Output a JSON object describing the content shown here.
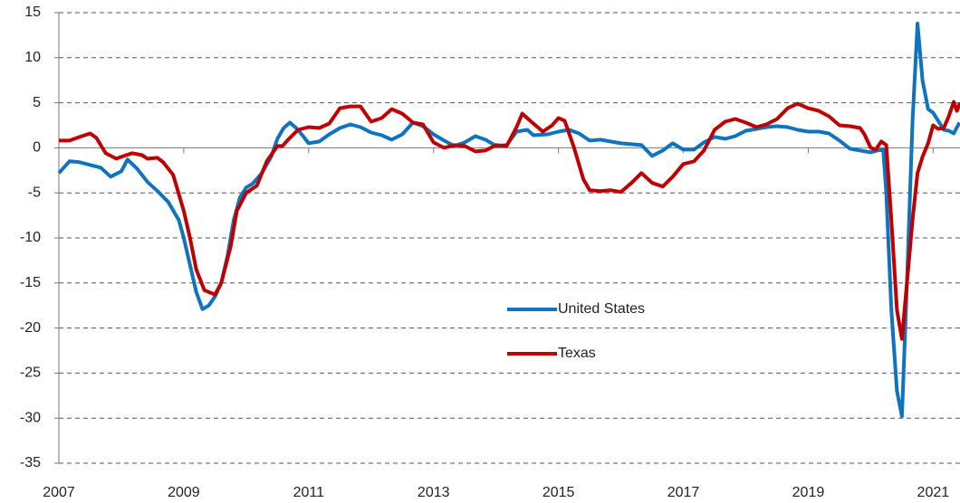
{
  "chart_data": {
    "type": "line",
    "xlim": [
      2007,
      2021.43
    ],
    "xticks": [
      2007,
      2009,
      2011,
      2013,
      2015,
      2017,
      2019,
      2021
    ],
    "ylim": [
      -35,
      15
    ],
    "yticks": [
      -35,
      -30,
      -25,
      -20,
      -15,
      -10,
      -5,
      0,
      5,
      10,
      15
    ],
    "grid": true,
    "legend": "center",
    "series": [
      {
        "name": "United States",
        "color": "#0f73c0",
        "x": [
          2007.0,
          2007.17,
          2007.33,
          2007.5,
          2007.67,
          2007.83,
          2008.0,
          2008.1,
          2008.25,
          2008.42,
          2008.58,
          2008.75,
          2008.92,
          2009.0,
          2009.1,
          2009.2,
          2009.3,
          2009.4,
          2009.5,
          2009.6,
          2009.7,
          2009.8,
          2009.9,
          2010.0,
          2010.1,
          2010.25,
          2010.4,
          2010.5,
          2010.6,
          2010.7,
          2010.8,
          2010.9,
          2011.0,
          2011.17,
          2011.33,
          2011.5,
          2011.67,
          2011.83,
          2012.0,
          2012.17,
          2012.33,
          2012.5,
          2012.67,
          2012.83,
          2013.0,
          2013.17,
          2013.33,
          2013.5,
          2013.67,
          2013.83,
          2014.0,
          2014.17,
          2014.33,
          2014.5,
          2014.6,
          2014.83,
          2015.0,
          2015.17,
          2015.33,
          2015.5,
          2015.67,
          2015.83,
          2016.0,
          2016.17,
          2016.33,
          2016.5,
          2016.67,
          2016.83,
          2017.0,
          2017.17,
          2017.33,
          2017.5,
          2017.67,
          2017.83,
          2018.0,
          2018.17,
          2018.33,
          2018.5,
          2018.67,
          2018.83,
          2019.0,
          2019.17,
          2019.33,
          2019.5,
          2019.67,
          2019.83,
          2020.0,
          2020.1,
          2020.2,
          2020.25,
          2020.33,
          2020.42,
          2020.5,
          2020.58,
          2020.67,
          2020.75,
          2020.83,
          2020.92,
          2021.0,
          2021.08,
          2021.17,
          2021.25,
          2021.33,
          2021.42
        ],
        "values": [
          -2.8,
          -1.5,
          -1.6,
          -1.9,
          -2.2,
          -3.2,
          -2.6,
          -1.3,
          -2.3,
          -3.8,
          -4.8,
          -6.0,
          -8.0,
          -10.0,
          -13,
          -16,
          -17.9,
          -17.5,
          -16.5,
          -15,
          -12,
          -8,
          -5.5,
          -4.4,
          -4.0,
          -2.8,
          -1.0,
          1.0,
          2.2,
          2.8,
          2.2,
          1.4,
          0.5,
          0.7,
          1.5,
          2.2,
          2.6,
          2.3,
          1.7,
          1.4,
          0.9,
          1.5,
          2.8,
          2.4,
          1.5,
          0.8,
          0.2,
          0.6,
          1.3,
          0.9,
          0.2,
          0.3,
          1.8,
          2.0,
          1.4,
          1.5,
          1.8,
          2.0,
          1.6,
          0.8,
          0.9,
          0.7,
          0.5,
          0.4,
          0.3,
          -0.9,
          -0.3,
          0.5,
          -0.2,
          -0.2,
          0.6,
          1.2,
          1.0,
          1.3,
          1.9,
          2.1,
          2.3,
          2.4,
          2.3,
          2.0,
          1.8,
          1.8,
          1.6,
          0.8,
          -0.1,
          -0.3,
          -0.5,
          -0.3,
          -0.2,
          -5,
          -18,
          -27,
          -29.8,
          -15,
          3,
          13.8,
          7.5,
          4.3,
          3.9,
          3.0,
          2.0,
          1.9,
          1.6,
          2.8
        ]
      },
      {
        "name": "Texas",
        "color": "#c00000",
        "x": [
          2007.0,
          2007.17,
          2007.33,
          2007.5,
          2007.6,
          2007.75,
          2007.92,
          2008.0,
          2008.17,
          2008.33,
          2008.42,
          2008.58,
          2008.67,
          2008.83,
          2009.0,
          2009.1,
          2009.2,
          2009.33,
          2009.5,
          2009.6,
          2009.75,
          2009.85,
          2010.0,
          2010.17,
          2010.33,
          2010.5,
          2010.58,
          2010.67,
          2010.83,
          2011.0,
          2011.17,
          2011.33,
          2011.5,
          2011.67,
          2011.83,
          2012.0,
          2012.17,
          2012.33,
          2012.5,
          2012.67,
          2012.83,
          2013.0,
          2013.17,
          2013.33,
          2013.5,
          2013.67,
          2013.83,
          2014.0,
          2014.17,
          2014.33,
          2014.42,
          2014.58,
          2014.75,
          2014.9,
          2015.0,
          2015.1,
          2015.25,
          2015.4,
          2015.5,
          2015.67,
          2015.83,
          2016.0,
          2016.17,
          2016.33,
          2016.5,
          2016.67,
          2016.83,
          2017.0,
          2017.17,
          2017.33,
          2017.5,
          2017.67,
          2017.83,
          2018.0,
          2018.17,
          2018.33,
          2018.5,
          2018.67,
          2018.83,
          2019.0,
          2019.17,
          2019.33,
          2019.5,
          2019.67,
          2019.83,
          2019.9,
          2020.0,
          2020.08,
          2020.17,
          2020.25,
          2020.33,
          2020.42,
          2020.5,
          2020.58,
          2020.67,
          2020.75,
          2020.83,
          2020.92,
          2021.0,
          2021.08,
          2021.17,
          2021.25,
          2021.33,
          2021.38,
          2021.43
        ],
        "values": [
          0.8,
          0.8,
          1.2,
          1.6,
          1.1,
          -0.6,
          -1.2,
          -1.0,
          -0.6,
          -0.8,
          -1.2,
          -1.1,
          -1.6,
          -3.0,
          -7.0,
          -10,
          -13.5,
          -15.8,
          -16.3,
          -15,
          -11,
          -7,
          -5,
          -4.2,
          -1.5,
          0.2,
          0.2,
          0.9,
          2.0,
          2.3,
          2.2,
          2.7,
          4.4,
          4.6,
          4.6,
          2.9,
          3.3,
          4.3,
          3.8,
          2.8,
          2.6,
          0.6,
          0.0,
          0.3,
          0.2,
          -0.4,
          -0.3,
          0.3,
          0.2,
          2.3,
          3.8,
          2.8,
          1.8,
          2.5,
          3.3,
          3.0,
          0.0,
          -3.5,
          -4.7,
          -4.8,
          -4.7,
          -4.9,
          -3.9,
          -2.8,
          -3.9,
          -4.3,
          -3.2,
          -1.8,
          -1.5,
          -0.3,
          2.0,
          2.9,
          3.2,
          2.8,
          2.3,
          2.6,
          3.2,
          4.4,
          4.9,
          4.4,
          4.1,
          3.5,
          2.5,
          2.4,
          2.2,
          1.5,
          0.0,
          -0.2,
          0.7,
          0.3,
          -8,
          -18,
          -21.2,
          -15,
          -8,
          -2.8,
          -1,
          0.5,
          2.5,
          2.1,
          2.2,
          3.5,
          5.1,
          4.1,
          5.0
        ]
      }
    ]
  }
}
